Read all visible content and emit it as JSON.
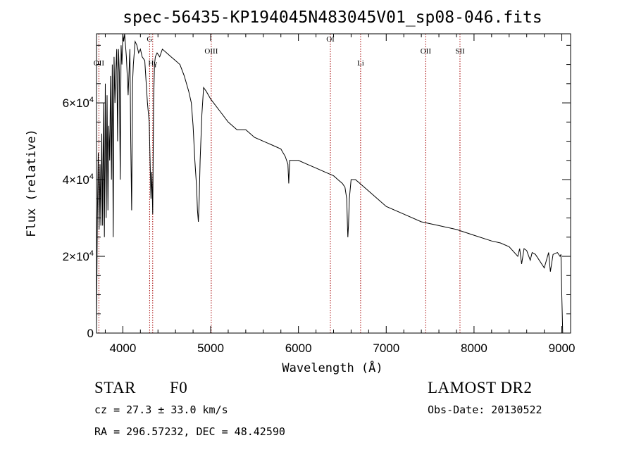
{
  "chart_data": {
    "type": "line",
    "title": "spec-56435-KP194045N483045V01_sp08-046.fits",
    "xlabel": "Wavelength (Å)",
    "ylabel": "Flux (relative)",
    "xlim": [
      3700,
      9100
    ],
    "ylim": [
      0,
      78000
    ],
    "x_ticks": [
      4000,
      5000,
      6000,
      7000,
      8000,
      9000
    ],
    "y_ticks": [
      {
        "value": 0,
        "label": "0",
        "sup": ""
      },
      {
        "value": 20000,
        "label": "2×10",
        "sup": "4"
      },
      {
        "value": 40000,
        "label": "4×10",
        "sup": "4"
      },
      {
        "value": 60000,
        "label": "6×10",
        "sup": "4"
      }
    ],
    "grid": false,
    "series": [
      {
        "color": "#000000",
        "x": [
          3700,
          3710,
          3720,
          3730,
          3740,
          3750,
          3760,
          3770,
          3780,
          3790,
          3800,
          3810,
          3820,
          3830,
          3840,
          3850,
          3860,
          3870,
          3880,
          3890,
          3900,
          3910,
          3920,
          3930,
          3940,
          3950,
          3960,
          3970,
          3980,
          3990,
          4000,
          4010,
          4020,
          4040,
          4060,
          4080,
          4090,
          4100,
          4110,
          4120,
          4140,
          4160,
          4180,
          4200,
          4220,
          4250,
          4280,
          4300,
          4320,
          4330,
          4340,
          4350,
          4360,
          4370,
          4390,
          4420,
          4450,
          4500,
          4550,
          4600,
          4650,
          4700,
          4750,
          4780,
          4800,
          4820,
          4840,
          4850,
          4860,
          4870,
          4880,
          4900,
          4920,
          4950,
          5000,
          5100,
          5200,
          5300,
          5400,
          5500,
          5600,
          5700,
          5800,
          5850,
          5880,
          5890,
          5900,
          5920,
          6000,
          6100,
          6200,
          6300,
          6400,
          6450,
          6500,
          6530,
          6550,
          6560,
          6563,
          6570,
          6580,
          6600,
          6650,
          6700,
          6800,
          6900,
          7000,
          7200,
          7400,
          7600,
          7800,
          8000,
          8200,
          8300,
          8400,
          8498,
          8520,
          8542,
          8570,
          8600,
          8640,
          8662,
          8700,
          8800,
          8850,
          8870,
          8900,
          8950,
          8980,
          8990,
          9000,
          9010
        ],
        "y": [
          2000,
          30000,
          47000,
          27000,
          44000,
          28000,
          52000,
          28000,
          60000,
          25000,
          65000,
          30000,
          62000,
          32000,
          54000,
          45000,
          67000,
          40000,
          70000,
          25000,
          72000,
          60000,
          68000,
          74000,
          50000,
          74000,
          68000,
          40000,
          75000,
          70000,
          78000,
          76000,
          78000,
          72000,
          62000,
          74000,
          50000,
          32000,
          65000,
          70000,
          76000,
          75000,
          73000,
          74000,
          72000,
          71000,
          60000,
          55000,
          35000,
          42000,
          31000,
          60000,
          70000,
          72000,
          73000,
          72000,
          74000,
          73000,
          72000,
          71000,
          70000,
          67000,
          63000,
          60000,
          54000,
          45000,
          38000,
          32000,
          29000,
          35000,
          45000,
          57000,
          64000,
          63000,
          61000,
          58000,
          55000,
          53000,
          53000,
          51000,
          50000,
          49000,
          48000,
          46000,
          44000,
          39000,
          45000,
          45000,
          45000,
          44000,
          43000,
          42000,
          41000,
          40000,
          39000,
          38000,
          35000,
          27000,
          25000,
          28000,
          35000,
          40000,
          40000,
          39000,
          37000,
          35000,
          33000,
          31000,
          29000,
          28000,
          27000,
          25500,
          24000,
          23500,
          22500,
          20000,
          22000,
          18000,
          22000,
          21500,
          19000,
          21000,
          20500,
          17000,
          21000,
          16000,
          20500,
          21000,
          20000,
          20500,
          10000,
          0
        ]
      }
    ],
    "line_markers": [
      {
        "label": "OII",
        "wavelength": 3727,
        "label_row": 2
      },
      {
        "label": "G",
        "wavelength": 4305,
        "label_row": 1
      },
      {
        "label": "Hγ",
        "wavelength": 4340,
        "label_row": 2
      },
      {
        "label": "OIII",
        "wavelength": 5007,
        "label_row": 1.5
      },
      {
        "label": "OI",
        "wavelength": 6364,
        "label_row": 1
      },
      {
        "label": "Li",
        "wavelength": 6708,
        "label_row": 2
      },
      {
        "label": "OII",
        "wavelength": 7450,
        "label_row": 1.5
      },
      {
        "label": "SII",
        "wavelength": 7840,
        "label_row": 1.5
      }
    ],
    "marker_color": "#a50000"
  },
  "info": {
    "object_type": "STAR",
    "subclass": "F0",
    "survey": "LAMOST DR2",
    "cz": "cz = 27.3 ± 33.0 km/s",
    "obs_date": "Obs-Date: 20130522",
    "coords": "RA = 296.57232, DEC =  48.42590"
  }
}
